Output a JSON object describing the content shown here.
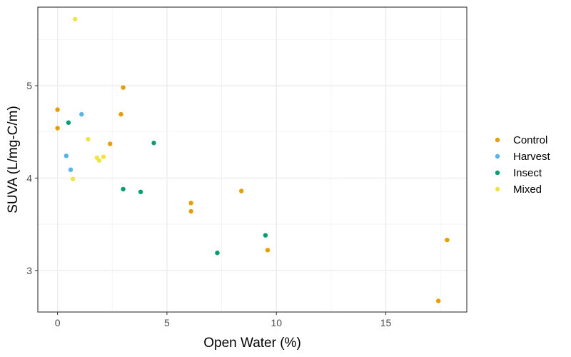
{
  "chart_data": {
    "type": "scatter",
    "title": "",
    "xlabel": "Open Water (%)",
    "ylabel": "SUVA (L/mg-C/m)",
    "xlim": [
      -0.9,
      18.7
    ],
    "ylim": [
      2.55,
      5.85
    ],
    "x_ticks": [
      0,
      5,
      10,
      15
    ],
    "y_ticks": [
      3,
      4,
      5
    ],
    "grid": true,
    "legend_position": "right",
    "series": [
      {
        "name": "Control",
        "color": "#E69F00",
        "points": [
          [
            0,
            4.74
          ],
          [
            0,
            4.54
          ],
          [
            3.0,
            4.98
          ],
          [
            2.9,
            4.69
          ],
          [
            2.4,
            4.37
          ],
          [
            6.1,
            3.73
          ],
          [
            6.1,
            3.64
          ],
          [
            8.4,
            3.86
          ],
          [
            9.6,
            3.22
          ],
          [
            17.4,
            2.67
          ],
          [
            17.8,
            3.33
          ]
        ]
      },
      {
        "name": "Harvest",
        "color": "#56B4E9",
        "points": [
          [
            1.1,
            4.69
          ],
          [
            0.4,
            4.24
          ],
          [
            0.6,
            4.09
          ]
        ]
      },
      {
        "name": "Insect",
        "color": "#009E73",
        "points": [
          [
            0.5,
            4.6
          ],
          [
            4.4,
            4.38
          ],
          [
            3.0,
            3.88
          ],
          [
            3.8,
            3.85
          ],
          [
            7.3,
            3.19
          ],
          [
            9.5,
            3.38
          ]
        ]
      },
      {
        "name": "Mixed",
        "color": "#F0E442",
        "points": [
          [
            0.8,
            5.72
          ],
          [
            1.4,
            4.42
          ],
          [
            1.8,
            4.22
          ],
          [
            2.1,
            4.23
          ],
          [
            1.9,
            4.19
          ],
          [
            0.7,
            3.99
          ]
        ]
      }
    ]
  }
}
